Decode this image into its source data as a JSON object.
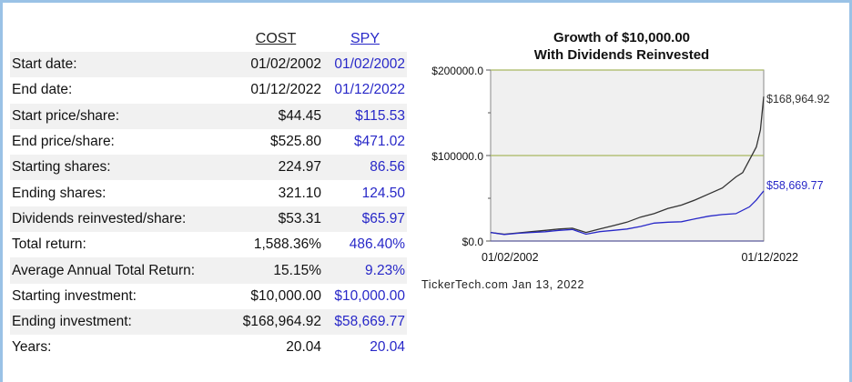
{
  "table": {
    "headers": [
      "COST",
      "SPY"
    ],
    "rows": [
      {
        "label": "Start date:",
        "cost": "01/02/2002",
        "spy": "01/02/2002"
      },
      {
        "label": "End date:",
        "cost": "01/12/2022",
        "spy": "01/12/2022"
      },
      {
        "label": "Start price/share:",
        "cost": "$44.45",
        "spy": "$115.53"
      },
      {
        "label": "End price/share:",
        "cost": "$525.80",
        "spy": "$471.02"
      },
      {
        "label": "Starting shares:",
        "cost": "224.97",
        "spy": "86.56"
      },
      {
        "label": "Ending shares:",
        "cost": "321.10",
        "spy": "124.50"
      },
      {
        "label": "Dividends reinvested/share:",
        "cost": "$53.31",
        "spy": "$65.97"
      },
      {
        "label": "Total return:",
        "cost": "1,588.36%",
        "spy": "486.40%"
      },
      {
        "label": "Average Annual Total Return:",
        "cost": "15.15%",
        "spy": "9.23%"
      },
      {
        "label": "Starting investment:",
        "cost": "$10,000.00",
        "spy": "$10,000.00"
      },
      {
        "label": "Ending investment:",
        "cost": "$168,964.92",
        "spy": "$58,669.77"
      },
      {
        "label": "Years:",
        "cost": "20.04",
        "spy": "20.04"
      }
    ]
  },
  "chart_data": {
    "type": "line",
    "title_line1": "Growth of $10,000.00",
    "title_line2": "With Dividends Reinvested",
    "ytick_labels": [
      "$200000.0",
      "$100000.0",
      "$0.0"
    ],
    "yticks": [
      200000,
      100000,
      0
    ],
    "ylim": [
      0,
      200000
    ],
    "xlim": [
      2002.0,
      2022.04
    ],
    "x_labels": [
      "01/02/2002",
      "01/12/2022"
    ],
    "grid": true,
    "end_labels": [
      "$168,964.92",
      "$58,669.77"
    ],
    "colors": {
      "cost": "#333333",
      "spy": "#2828c8",
      "grid": "#a8b860",
      "plot_bg": "#f0f0f0"
    },
    "series": [
      {
        "key": "cost",
        "x": [
          2002,
          2003,
          2004,
          2005,
          2006,
          2007,
          2008,
          2009,
          2010,
          2011,
          2012,
          2013,
          2014,
          2015,
          2016,
          2017,
          2018,
          2019,
          2020,
          2020.5,
          2021,
          2021.5,
          2021.8,
          2022.04
        ],
        "y": [
          10000,
          8000,
          9500,
          11000,
          12500,
          14000,
          15000,
          10000,
          14000,
          18000,
          22000,
          28000,
          32000,
          38000,
          42000,
          48000,
          55000,
          62000,
          75000,
          80000,
          95000,
          110000,
          130000,
          168964.92
        ]
      },
      {
        "key": "spy",
        "x": [
          2002,
          2003,
          2004,
          2005,
          2006,
          2007,
          2008,
          2009,
          2010,
          2011,
          2012,
          2013,
          2014,
          2015,
          2016,
          2017,
          2018,
          2019,
          2020,
          2021,
          2021.5,
          2022.04
        ],
        "y": [
          10000,
          7500,
          9000,
          10000,
          10800,
          12500,
          13500,
          8000,
          11000,
          12500,
          14000,
          17000,
          21000,
          22000,
          22500,
          26000,
          29000,
          31000,
          32000,
          40000,
          48000,
          58669.77
        ]
      }
    ]
  },
  "watermark": "TickerTech.com  Jan 13, 2022"
}
